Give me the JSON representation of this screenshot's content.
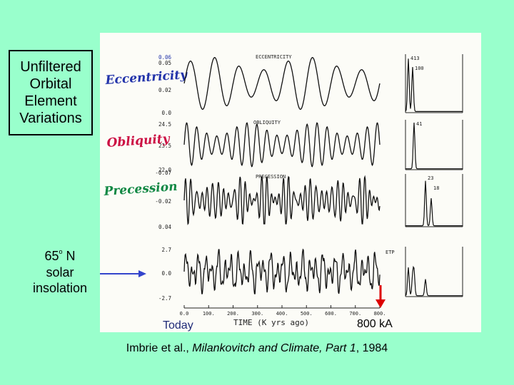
{
  "box_label": [
    "Unfiltered",
    "Orbital",
    "Element",
    "Variations"
  ],
  "insolation": {
    "deg": "65",
    "o": "o",
    "rest": " N",
    "line2": "solar",
    "line3": "insolation"
  },
  "today_label": "Today",
  "marker_label": "800 kA",
  "citation": {
    "authors": "Imbrie et al., ",
    "title": "Milankovitch and Climate, Part 1",
    "year": ", 1984"
  },
  "colors": {
    "background": "#99ffcc",
    "eccentricity": "#2233aa",
    "obliquity": "#cc1144",
    "precession": "#118844",
    "arrow_blue": "#3344cc",
    "arrow_red": "#dd0000"
  },
  "chart_data": {
    "type": "line",
    "xlabel": "TIME (K yrs ago)",
    "x_ticks": [
      "0.0",
      "100.",
      "200.",
      "300.",
      "400.",
      "500.",
      "600.",
      "700.",
      "800."
    ],
    "xlim": [
      0,
      800
    ],
    "panels": [
      {
        "name": "ECCENTRICITY",
        "handwritten": "Eccentricity",
        "yticks": [
          "0.06",
          "0.05",
          "0.02",
          "0.0"
        ],
        "period_labels": [
          "413",
          "100"
        ],
        "cycles_in_record": 8,
        "ylim": [
          0.0,
          0.06
        ]
      },
      {
        "name": "OBLIQUITY",
        "handwritten": "Obliquity",
        "yticks": [
          "24.5",
          "23.5",
          "22.0"
        ],
        "period_labels": [
          "41"
        ],
        "cycles_in_record": 19.5,
        "ylim": [
          22.0,
          24.5
        ]
      },
      {
        "name": "PRECESSION",
        "handwritten": "Precession",
        "yticks": [
          "-0.07",
          "-0.02",
          "0.04"
        ],
        "period_labels": [
          "23",
          "18"
        ],
        "cycles_in_record": 36,
        "ylim": [
          -0.07,
          0.04
        ]
      },
      {
        "name": "ETP",
        "yticks": [
          "2.7",
          "0.0",
          "-2.7"
        ],
        "cycles_in_record": 30,
        "ylim": [
          -2.7,
          2.7
        ]
      }
    ]
  }
}
